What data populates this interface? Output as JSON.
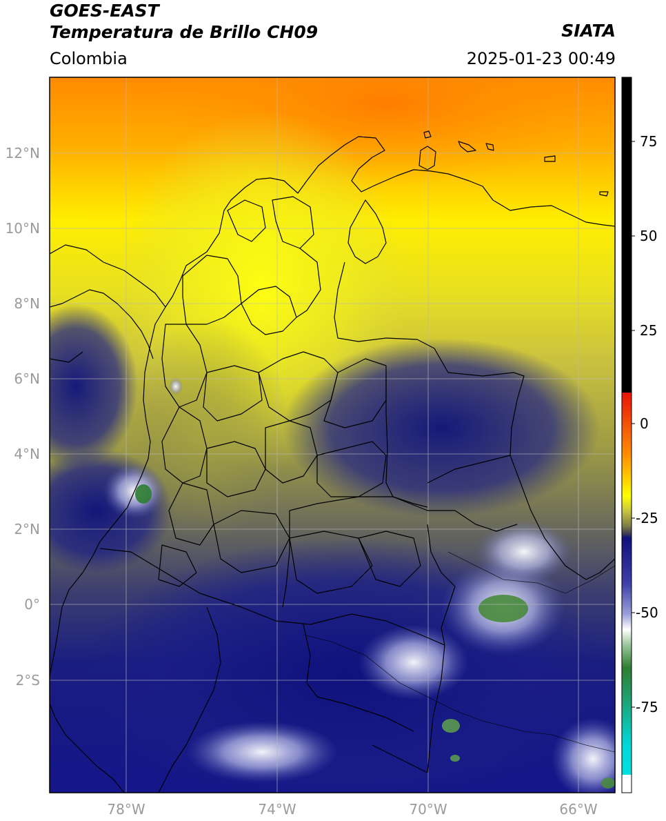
{
  "header": {
    "line1": "GOES-EAST",
    "line2": "Temperatura de Brillo CH09",
    "region": "Colombia",
    "organization": "SIATA",
    "datetime": "2025-01-23 00:49"
  },
  "map": {
    "lat_labels": [
      "12°N",
      "10°N",
      "8°N",
      "6°N",
      "4°N",
      "2°N",
      "0°",
      "2°S"
    ],
    "lon_labels": [
      "78°W",
      "74°W",
      "70°W",
      "66°W"
    ]
  },
  "colorbar": {
    "ticks": [
      "75",
      "50",
      "25",
      "0",
      "-25",
      "-50",
      "-75"
    ],
    "colors": {
      "black": "#000000",
      "red": "#e8140a",
      "orange": "#ff8c00",
      "yellow": "#ffff00",
      "olive": "#9a9a35",
      "navy": "#0f127a",
      "white": "#ffffff",
      "green": "#2e7d32",
      "cyan": "#00d8d8"
    }
  }
}
